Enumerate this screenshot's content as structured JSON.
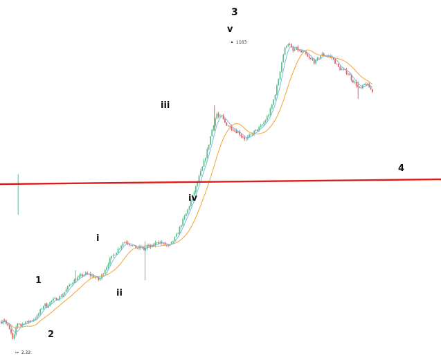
{
  "chart_data": {
    "type": "candlestick",
    "grid": false,
    "legend": "none",
    "colors": {
      "up": "#5bbf8a",
      "down": "#e06060",
      "ma_fast": "#69b3e7",
      "ma_slow": "#f5a030",
      "level_line": "#d91e1e"
    },
    "annotations": {
      "high_price": "1163",
      "low_price": "2.22",
      "waves": [
        "1",
        "2",
        "i",
        "ii",
        "iii",
        "iv",
        "v",
        "3",
        "4"
      ]
    },
    "close_path": [
      [
        0,
        0.36
      ],
      [
        1,
        0.4
      ],
      [
        2,
        0.34
      ],
      [
        3,
        0.3
      ],
      [
        4,
        0.26
      ],
      [
        5,
        0.2
      ],
      [
        6,
        0.3
      ],
      [
        7,
        0.36
      ],
      [
        8,
        0.32
      ],
      [
        9,
        0.34
      ],
      [
        10,
        0.36
      ],
      [
        11,
        0.35
      ],
      [
        12,
        0.37
      ],
      [
        13,
        0.38
      ],
      [
        14,
        0.4
      ],
      [
        15,
        0.42
      ],
      [
        16,
        0.48
      ],
      [
        17,
        0.54
      ],
      [
        18,
        0.6
      ],
      [
        19,
        0.56
      ],
      [
        20,
        0.62
      ],
      [
        21,
        0.66
      ],
      [
        22,
        0.68
      ],
      [
        23,
        0.7
      ],
      [
        24,
        0.72
      ],
      [
        25,
        0.76
      ],
      [
        26,
        0.82
      ],
      [
        27,
        0.9
      ],
      [
        28,
        1.0
      ],
      [
        29,
        1.1
      ],
      [
        30,
        1.16
      ],
      [
        31,
        1.24
      ],
      [
        32,
        1.28
      ],
      [
        33,
        1.34
      ],
      [
        34,
        1.4
      ],
      [
        35,
        1.44
      ],
      [
        36,
        1.42
      ],
      [
        37,
        1.4
      ],
      [
        38,
        1.35
      ],
      [
        39,
        1.32
      ],
      [
        40,
        1.25
      ],
      [
        41,
        1.2
      ],
      [
        42,
        1.4
      ],
      [
        43,
        1.6
      ],
      [
        44,
        1.8
      ],
      [
        45,
        2.1
      ],
      [
        46,
        2.3
      ],
      [
        47,
        2.55
      ],
      [
        48,
        2.75
      ],
      [
        49,
        3.0
      ],
      [
        50,
        3.3
      ],
      [
        51,
        3.6
      ],
      [
        52,
        3.7
      ],
      [
        53,
        3.5
      ],
      [
        54,
        3.4
      ],
      [
        55,
        3.2
      ],
      [
        56,
        3.1
      ],
      [
        57,
        3.0
      ],
      [
        58,
        3.1
      ],
      [
        59,
        3.0
      ],
      [
        60,
        2.9
      ],
      [
        61,
        3.3
      ],
      [
        62,
        3.1
      ],
      [
        63,
        3.2
      ],
      [
        64,
        3.4
      ],
      [
        65,
        3.7
      ],
      [
        66,
        3.6
      ],
      [
        67,
        3.5
      ],
      [
        68,
        3.4
      ],
      [
        69,
        3.3
      ],
      [
        70,
        3.1
      ],
      [
        71,
        3.5
      ],
      [
        72,
        3.9
      ],
      [
        73,
        4.3
      ],
      [
        74,
        5.0
      ],
      [
        75,
        6.0
      ],
      [
        76,
        7.0
      ],
      [
        77,
        8.0
      ],
      [
        78,
        9.5
      ],
      [
        79,
        11.5
      ],
      [
        80,
        14.0
      ],
      [
        81,
        17.0
      ],
      [
        82,
        21.0
      ],
      [
        83,
        26.0
      ],
      [
        84,
        32.0
      ],
      [
        85,
        40.0
      ],
      [
        86,
        52.0
      ],
      [
        87,
        70.0
      ],
      [
        88,
        95.0
      ],
      [
        89,
        120.0
      ],
      [
        90,
        150.0
      ],
      [
        91,
        130.0
      ],
      [
        92,
        140.0
      ],
      [
        93,
        120.0
      ],
      [
        94,
        110.0
      ],
      [
        95,
        105.0
      ],
      [
        96,
        100.0
      ],
      [
        97,
        95.0
      ],
      [
        98,
        90.0
      ],
      [
        99,
        88.0
      ],
      [
        100,
        80.0
      ],
      [
        101,
        76.0
      ],
      [
        102,
        70.0
      ],
      [
        103,
        75.0
      ],
      [
        104,
        80.0
      ],
      [
        105,
        85.0
      ],
      [
        106,
        90.0
      ],
      [
        107,
        95.0
      ],
      [
        108,
        100.0
      ],
      [
        109,
        108.0
      ],
      [
        110,
        120.0
      ],
      [
        111,
        135.0
      ],
      [
        112,
        155.0
      ],
      [
        113,
        190.0
      ],
      [
        114,
        240.0
      ],
      [
        115,
        320.0
      ],
      [
        116,
        450.0
      ],
      [
        117,
        650.0
      ],
      [
        118,
        900.0
      ],
      [
        119,
        1100.0
      ],
      [
        120,
        1163.0
      ],
      [
        121,
        1000.0
      ],
      [
        122,
        900.0
      ],
      [
        123,
        1000.0
      ],
      [
        124,
        950.0
      ],
      [
        125,
        880.0
      ],
      [
        126,
        900.0
      ],
      [
        127,
        850.0
      ],
      [
        128,
        760.0
      ],
      [
        129,
        720.0
      ],
      [
        130,
        700.0
      ],
      [
        131,
        660.0
      ],
      [
        132,
        720.0
      ],
      [
        133,
        800.0
      ],
      [
        134,
        830.0
      ],
      [
        135,
        820.0
      ],
      [
        136,
        800.0
      ],
      [
        137,
        790.0
      ],
      [
        138,
        760.0
      ],
      [
        139,
        700.0
      ],
      [
        140,
        620.0
      ],
      [
        141,
        560.0
      ],
      [
        142,
        540.0
      ],
      [
        143,
        520.0
      ],
      [
        144,
        500.0
      ],
      [
        145,
        480.0
      ],
      [
        146,
        420.0
      ],
      [
        147,
        380.0
      ],
      [
        148,
        360.0
      ],
      [
        149,
        320.0
      ],
      [
        150,
        300.0
      ],
      [
        151,
        330.0
      ],
      [
        152,
        360.0
      ],
      [
        153,
        340.0
      ],
      [
        154,
        310.0
      ],
      [
        155,
        290.0
      ]
    ]
  }
}
